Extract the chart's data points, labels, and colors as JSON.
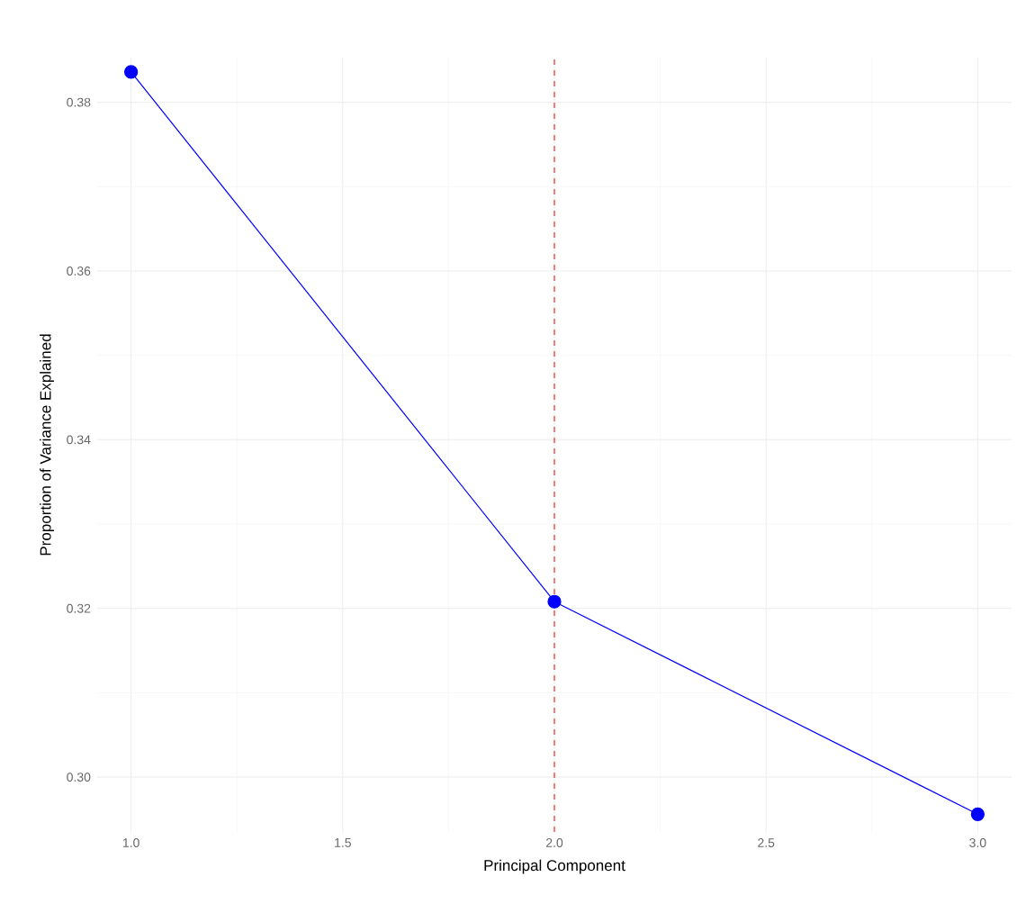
{
  "chart_data": {
    "type": "line",
    "xlabel": "Principal Component",
    "ylabel": "Proportion of Variance Explained",
    "x": [
      1,
      2,
      3
    ],
    "series": [
      {
        "color": "#0000ff",
        "values": [
          0.3836,
          0.3208,
          0.2956
        ]
      }
    ],
    "marker": "circle",
    "line_style": "solid",
    "grid": true,
    "xlim": [
      0.92,
      3.08
    ],
    "xticks": [
      {
        "value": 1,
        "label": "1.0"
      },
      1.5,
      {
        "value": 2,
        "label": "2.0"
      },
      2.5,
      {
        "value": 3,
        "label": "3.0"
      }
    ],
    "ylim": [
      0.2935,
      0.3853
    ],
    "yticks": [
      {
        "value": 0.3,
        "label": "0.30"
      },
      0.32,
      0.34,
      0.36,
      0.38
    ],
    "ref_lines": [
      {
        "axis": "x",
        "value": 2,
        "color": "#ff0000",
        "line_style": "dashed"
      }
    ]
  }
}
